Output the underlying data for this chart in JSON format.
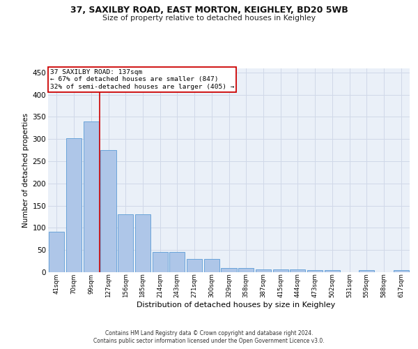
{
  "title1": "37, SAXILBY ROAD, EAST MORTON, KEIGHLEY, BD20 5WB",
  "title2": "Size of property relative to detached houses in Keighley",
  "xlabel": "Distribution of detached houses by size in Keighley",
  "ylabel": "Number of detached properties",
  "categories": [
    "41sqm",
    "70sqm",
    "99sqm",
    "127sqm",
    "156sqm",
    "185sqm",
    "214sqm",
    "243sqm",
    "271sqm",
    "300sqm",
    "329sqm",
    "358sqm",
    "387sqm",
    "415sqm",
    "444sqm",
    "473sqm",
    "502sqm",
    "531sqm",
    "559sqm",
    "588sqm",
    "617sqm"
  ],
  "values": [
    91,
    302,
    340,
    276,
    131,
    131,
    46,
    46,
    30,
    30,
    10,
    10,
    7,
    7,
    7,
    4,
    4,
    0,
    4,
    0,
    4
  ],
  "bar_color": "#aec6e8",
  "bar_edge_color": "#5b9bd5",
  "annotation_line1": "37 SAXILBY ROAD: 137sqm",
  "annotation_line2": "← 67% of detached houses are smaller (847)",
  "annotation_line3": "32% of semi-detached houses are larger (405) →",
  "annotation_box_color": "#ffffff",
  "annotation_box_edge_color": "#cc0000",
  "vline_color": "#cc0000",
  "grid_color": "#d0d8e8",
  "background_color": "#eaf0f8",
  "footer_line1": "Contains HM Land Registry data © Crown copyright and database right 2024.",
  "footer_line2": "Contains public sector information licensed under the Open Government Licence v3.0.",
  "ylim": [
    0,
    460
  ],
  "yticks": [
    0,
    50,
    100,
    150,
    200,
    250,
    300,
    350,
    400,
    450
  ]
}
